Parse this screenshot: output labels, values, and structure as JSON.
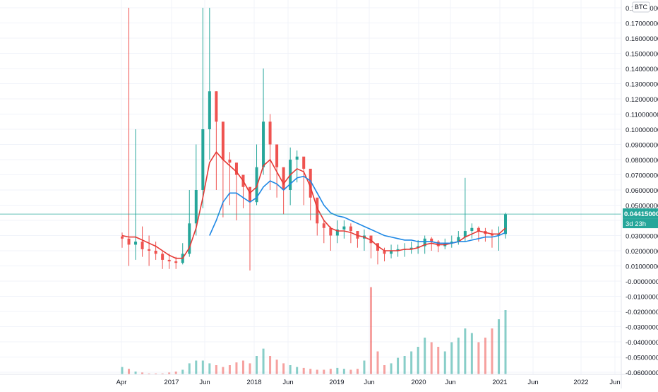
{
  "currency_label": "BTC",
  "price_axis": {
    "ticks": [
      "0.18000000",
      "0.17000000",
      "0.16000000",
      "0.15000000",
      "0.14000000",
      "0.13000000",
      "0.12000000",
      "0.11000000",
      "0.10000000",
      "0.09000000",
      "0.08000000",
      "0.07000000",
      "0.06000000",
      "0.05000000",
      "0.04000000",
      "0.03000000",
      "0.02000000",
      "0.01000000",
      "-0.00000000",
      "-0.01000000",
      "-0.02000000",
      "-0.03000000",
      "-0.04000000",
      "-0.05000000",
      "-0.06000000"
    ],
    "ylim": [
      -0.06,
      0.182
    ]
  },
  "last_price": {
    "value": 0.04415,
    "label": "0.04415000",
    "countdown": "3d 23h"
  },
  "time_axis": {
    "ticks": [
      "Apr",
      "2017",
      "Jun",
      "2018",
      "Jun",
      "2019",
      "Jun",
      "2020",
      "Jun",
      "2021",
      "Jun",
      "2022",
      "Jun"
    ]
  },
  "colors": {
    "up": "#26a69a",
    "down": "#ef5350",
    "ma_fast": "#e53935",
    "ma_slow": "#1e88e5",
    "grid": "#f0f3fa",
    "axis_text": "#131722",
    "price_line": "#26a69a"
  },
  "chart_data": {
    "type": "candlestick",
    "interval": "weekly",
    "x": [
      "2016-04",
      "2016-05",
      "2016-06",
      "2016-07",
      "2016-08",
      "2016-09",
      "2016-10",
      "2016-11",
      "2016-12",
      "2017-01",
      "2017-02",
      "2017-03",
      "2017-04",
      "2017-05",
      "2017-06",
      "2017-07",
      "2017-08",
      "2017-09",
      "2017-10",
      "2017-11",
      "2017-12",
      "2018-01",
      "2018-02",
      "2018-03",
      "2018-04",
      "2018-05",
      "2018-06",
      "2018-07",
      "2018-08",
      "2018-09",
      "2018-10",
      "2018-11",
      "2018-12",
      "2019-01",
      "2019-02",
      "2019-03",
      "2019-04",
      "2019-05",
      "2019-06",
      "2019-07",
      "2019-08",
      "2019-09",
      "2019-10",
      "2019-11",
      "2019-12",
      "2020-01",
      "2020-02",
      "2020-03",
      "2020-04",
      "2020-05",
      "2020-06",
      "2020-07",
      "2020-08",
      "2020-09",
      "2020-10",
      "2020-11",
      "2020-12",
      "2021-01"
    ],
    "close": [
      0.028,
      0.024,
      0.026,
      0.021,
      0.02,
      0.018,
      0.014,
      0.013,
      0.012,
      0.018,
      0.038,
      0.06,
      0.1,
      0.125,
      0.105,
      0.08,
      0.078,
      0.07,
      0.062,
      0.052,
      0.075,
      0.105,
      0.09,
      0.075,
      0.06,
      0.08,
      0.082,
      0.074,
      0.055,
      0.038,
      0.035,
      0.03,
      0.034,
      0.036,
      0.033,
      0.028,
      0.03,
      0.025,
      0.02,
      0.018,
      0.02,
      0.021,
      0.021,
      0.022,
      0.023,
      0.028,
      0.026,
      0.023,
      0.025,
      0.026,
      0.029,
      0.033,
      0.035,
      0.033,
      0.031,
      0.03,
      0.031,
      0.044
    ],
    "high": [
      0.032,
      0.18,
      0.1,
      0.036,
      0.03,
      0.026,
      0.02,
      0.018,
      0.016,
      0.025,
      0.06,
      0.09,
      0.18,
      0.18,
      0.125,
      0.09,
      0.085,
      0.078,
      0.07,
      0.06,
      0.09,
      0.14,
      0.11,
      0.085,
      0.07,
      0.088,
      0.086,
      0.08,
      0.065,
      0.045,
      0.04,
      0.036,
      0.04,
      0.04,
      0.038,
      0.033,
      0.034,
      0.03,
      0.024,
      0.022,
      0.024,
      0.024,
      0.025,
      0.026,
      0.027,
      0.03,
      0.029,
      0.027,
      0.028,
      0.03,
      0.033,
      0.068,
      0.038,
      0.036,
      0.035,
      0.034,
      0.036,
      0.045
    ],
    "low": [
      0.022,
      0.01,
      0.014,
      0.016,
      0.01,
      0.014,
      0.008,
      0.008,
      0.008,
      0.011,
      0.016,
      0.03,
      0.048,
      0.08,
      0.06,
      0.042,
      0.05,
      0.04,
      0.048,
      0.007,
      0.05,
      0.07,
      0.06,
      0.055,
      0.044,
      0.05,
      0.065,
      0.05,
      0.04,
      0.03,
      0.025,
      0.02,
      0.025,
      0.028,
      0.025,
      0.022,
      0.02,
      0.015,
      0.011,
      0.013,
      0.015,
      0.016,
      0.016,
      0.018,
      0.018,
      0.018,
      0.02,
      0.019,
      0.021,
      0.022,
      0.024,
      0.026,
      0.028,
      0.026,
      0.026,
      0.022,
      0.02,
      0.028
    ],
    "ma_fast": [
      0.03,
      0.029,
      0.029,
      0.027,
      0.025,
      0.023,
      0.02,
      0.017,
      0.015,
      0.015,
      0.022,
      0.035,
      0.055,
      0.078,
      0.085,
      0.08,
      0.076,
      0.072,
      0.066,
      0.058,
      0.062,
      0.076,
      0.08,
      0.072,
      0.064,
      0.07,
      0.074,
      0.072,
      0.062,
      0.048,
      0.04,
      0.035,
      0.033,
      0.033,
      0.032,
      0.03,
      0.029,
      0.027,
      0.023,
      0.02,
      0.02,
      0.02,
      0.021,
      0.021,
      0.022,
      0.024,
      0.025,
      0.024,
      0.024,
      0.025,
      0.026,
      0.029,
      0.031,
      0.033,
      0.032,
      0.031,
      0.031,
      0.035
    ],
    "ma_slow": [
      null,
      null,
      null,
      null,
      null,
      null,
      null,
      null,
      null,
      null,
      null,
      null,
      null,
      0.03,
      0.04,
      0.052,
      0.058,
      0.058,
      0.055,
      0.052,
      0.055,
      0.062,
      0.066,
      0.064,
      0.06,
      0.064,
      0.068,
      0.069,
      0.066,
      0.058,
      0.05,
      0.045,
      0.043,
      0.042,
      0.04,
      0.038,
      0.036,
      0.034,
      0.032,
      0.03,
      0.029,
      0.028,
      0.027,
      0.027,
      0.026,
      0.026,
      0.026,
      0.025,
      0.025,
      0.025,
      0.026,
      0.026,
      0.027,
      0.028,
      0.029,
      0.029,
      0.03,
      0.032
    ],
    "volume": [
      0.08,
      0.06,
      0.03,
      0.02,
      0.01,
      0.01,
      0.01,
      0.02,
      0.03,
      0.05,
      0.12,
      0.15,
      0.15,
      0.12,
      0.1,
      0.08,
      0.1,
      0.13,
      0.15,
      0.12,
      0.2,
      0.28,
      0.2,
      0.16,
      0.12,
      0.1,
      0.08,
      0.07,
      0.06,
      0.05,
      0.05,
      0.06,
      0.07,
      0.06,
      0.05,
      0.06,
      0.15,
      0.95,
      0.25,
      0.1,
      0.12,
      0.18,
      0.2,
      0.25,
      0.3,
      0.4,
      0.35,
      0.3,
      0.25,
      0.35,
      0.4,
      0.5,
      0.45,
      0.35,
      0.4,
      0.5,
      0.6,
      0.7
    ]
  }
}
